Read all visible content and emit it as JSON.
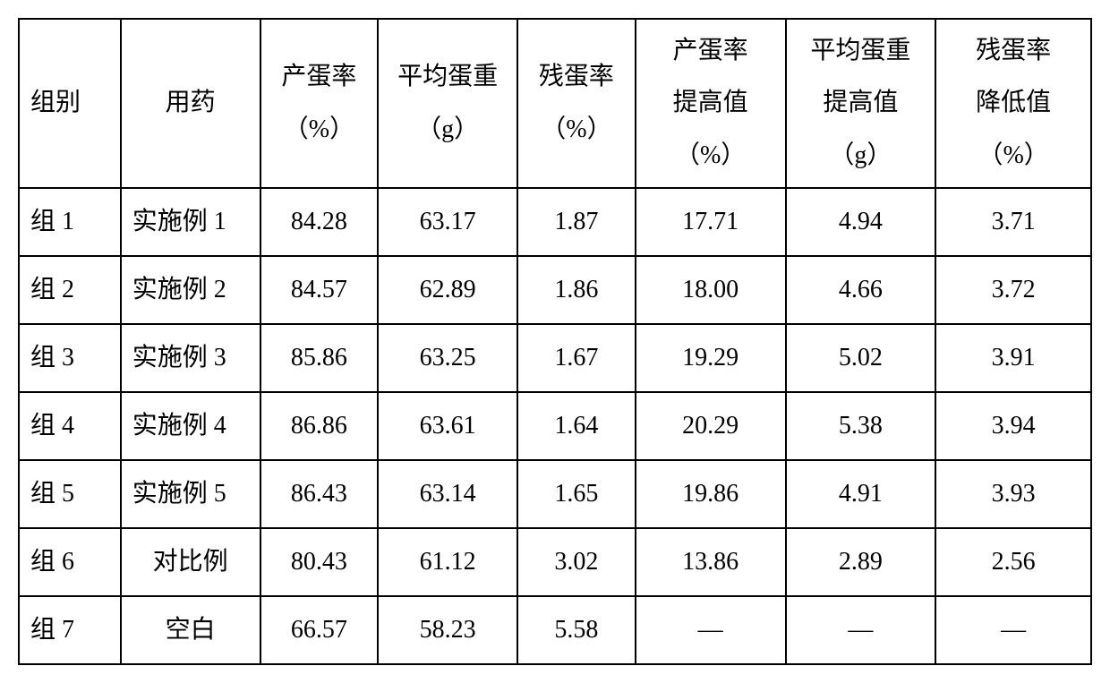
{
  "table": {
    "columns": [
      {
        "label": "组别",
        "multiline": false,
        "align": "left"
      },
      {
        "label": "用药",
        "multiline": false,
        "align": "center"
      },
      {
        "line1": "产蛋率",
        "line2": "（%）",
        "multiline": true,
        "align": "center"
      },
      {
        "line1": "平均蛋重",
        "line2": "（g）",
        "multiline": true,
        "align": "center"
      },
      {
        "line1": "残蛋率",
        "line2": "（%）",
        "multiline": true,
        "align": "center"
      },
      {
        "line1": "产蛋率",
        "line2": "提高值",
        "line3": "（%）",
        "multiline": true,
        "align": "center"
      },
      {
        "line1": "平均蛋重",
        "line2": "提高值",
        "line3": "（g）",
        "multiline": true,
        "align": "center"
      },
      {
        "line1": "残蛋率",
        "line2": "降低值",
        "line3": "（%）",
        "multiline": true,
        "align": "center"
      }
    ],
    "rows": [
      [
        "组 1",
        "实施例 1",
        "84.28",
        "63.17",
        "1.87",
        "17.71",
        "4.94",
        "3.71"
      ],
      [
        "组 2",
        "实施例 2",
        "84.57",
        "62.89",
        "1.86",
        "18.00",
        "4.66",
        "3.72"
      ],
      [
        "组 3",
        "实施例 3",
        "85.86",
        "63.25",
        "1.67",
        "19.29",
        "5.02",
        "3.91"
      ],
      [
        "组 4",
        "实施例 4",
        "86.86",
        "63.61",
        "1.64",
        "20.29",
        "5.38",
        "3.94"
      ],
      [
        "组 5",
        "实施例 5",
        "86.43",
        "63.14",
        "1.65",
        "19.86",
        "4.91",
        "3.93"
      ],
      [
        "组 6",
        "对比例",
        "80.43",
        "61.12",
        "3.02",
        "13.86",
        "2.89",
        "2.56"
      ],
      [
        "组 7",
        "空白",
        "66.57",
        "58.23",
        "5.58",
        "—",
        "—",
        "—"
      ]
    ],
    "column_widths": [
      "9.5%",
      "13%",
      "11%",
      "13%",
      "11%",
      "14%",
      "14%",
      "14.5%"
    ],
    "border_color": "#000000",
    "background_color": "#ffffff",
    "text_color": "#000000",
    "font_size": 28,
    "font_family": "SimSun"
  }
}
